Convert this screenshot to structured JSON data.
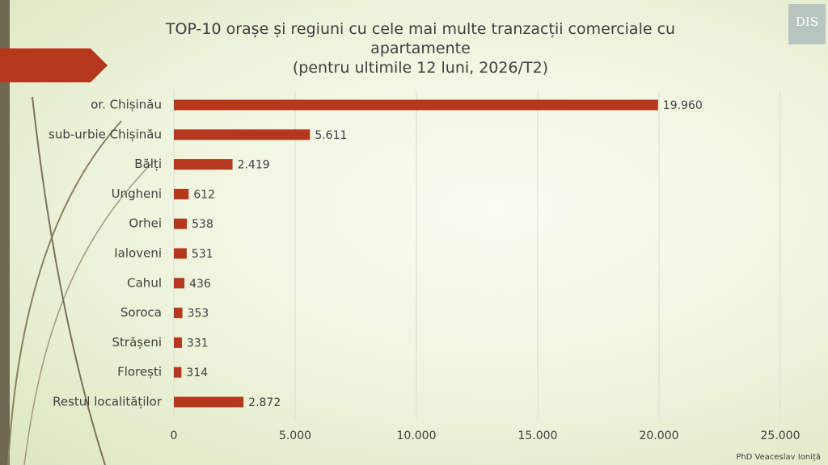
{
  "logo": "DIS",
  "footer": "PhD Veaceslav Ioniță",
  "chart_data": {
    "type": "hbar",
    "title": "TOP-10 orașe și regiuni cu cele mai multe tranzacții comerciale cu apartamente",
    "subtitle": "(pentru ultimile 12 luni, 2026/T2)",
    "categories": [
      "or. Chișinău",
      "sub-urbie Chișinău",
      "Bălți",
      "Ungheni",
      "Orhei",
      "Ialoveni",
      "Cahul",
      "Soroca",
      "Strășeni",
      "Florești",
      "Restul localităților"
    ],
    "values": [
      19960,
      5611,
      2419,
      612,
      538,
      531,
      436,
      353,
      331,
      314,
      2872
    ],
    "value_labels": [
      "19.960",
      "5.611",
      "2.419",
      "612",
      "538",
      "531",
      "436",
      "353",
      "331",
      "314",
      "2.872"
    ],
    "color": "#b5371c",
    "xlim": [
      0,
      25000
    ],
    "xticks": [
      0,
      {
        "value": 5000,
        "label": "5.000"
      },
      {
        "value": 10000,
        "label": "10.000"
      },
      {
        "value": 15000,
        "label": "15.000"
      },
      {
        "value": 20000,
        "label": "20.000"
      },
      {
        "value": 25000,
        "label": "25.000"
      }
    ],
    "grid": true
  }
}
